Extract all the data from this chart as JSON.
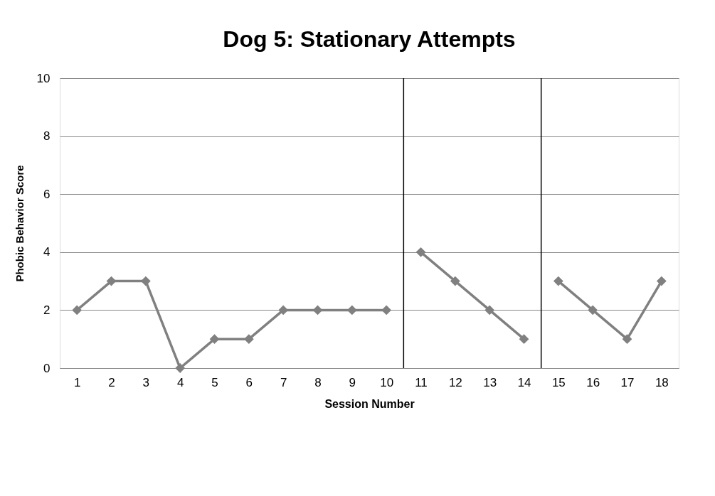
{
  "chart_data": {
    "type": "line",
    "title": "Dog 5: Stationary Attempts",
    "xlabel": "Session Number",
    "ylabel": "Phobic Behavior Score",
    "series": [
      {
        "color": "#808080",
        "x": [
          1,
          2,
          3,
          4,
          5,
          6,
          7,
          8,
          9,
          10
        ],
        "values": [
          2,
          3,
          3,
          0,
          1,
          1,
          2,
          2,
          2,
          2
        ]
      },
      {
        "color": "#808080",
        "x": [
          11,
          12,
          13,
          14
        ],
        "values": [
          4,
          3,
          2,
          1
        ]
      },
      {
        "color": "#808080",
        "x": [
          15,
          16,
          17,
          18
        ],
        "values": [
          3,
          2,
          1,
          3
        ]
      }
    ],
    "xlim": [
      0.5,
      18.5
    ],
    "xticks": [
      1,
      2,
      3,
      4,
      5,
      6,
      7,
      8,
      9,
      10,
      11,
      12,
      13,
      14,
      15,
      16,
      17,
      18
    ],
    "ylim": [
      0,
      10
    ],
    "yticks": [
      0,
      2,
      4,
      6,
      8,
      10
    ],
    "ref_lines": [
      {
        "axis": "x",
        "value": 10.5,
        "color": "#000000"
      },
      {
        "axis": "x",
        "value": 14.5,
        "color": "#000000"
      }
    ],
    "grid": "y",
    "marker": "diamond",
    "line_style": "solid"
  }
}
